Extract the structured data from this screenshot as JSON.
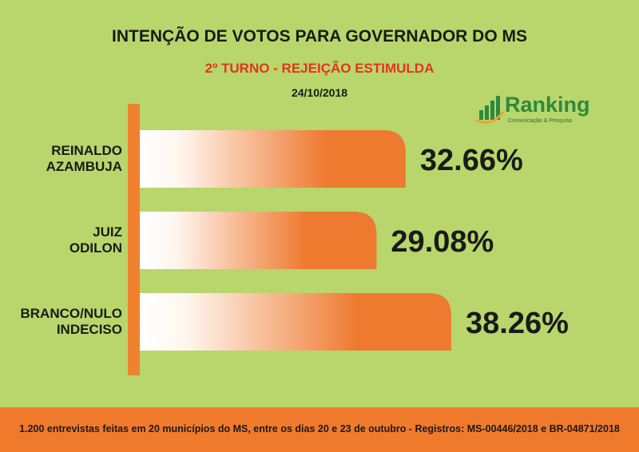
{
  "chart_data": {
    "type": "bar",
    "orientation": "horizontal",
    "title": "INTENÇÃO DE VOTOS PARA GOVERNADOR DO MS",
    "subtitle": "2º TURNO - REJEIÇÃO ESTIMULDA",
    "date": "24/10/2018",
    "categories": [
      "REINALDO\nAZAMBUJA",
      "JUIZ\nODILON",
      "BRANCO/NULO\nINDECISO"
    ],
    "values": [
      32.66,
      29.08,
      38.26
    ],
    "value_labels": [
      "32.66%",
      "29.08%",
      "38.26%"
    ],
    "color": "#ee7a30",
    "footnote": "1.200 entrevistas feitas em 20 municípios do MS, entre os dias 20 e 23 de outubro - Registros: MS-00446/2018 e BR-04871/2018"
  },
  "logo": {
    "name": "Ranking",
    "tagline": "Comunicação & Pesquisa"
  }
}
